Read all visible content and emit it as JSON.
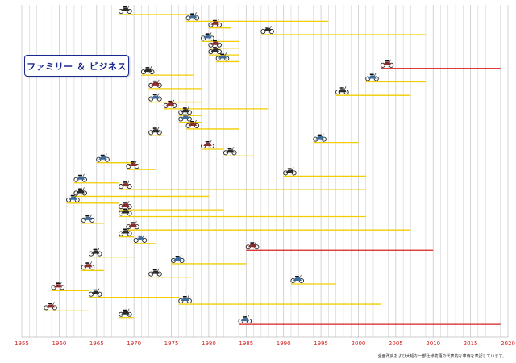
{
  "title": "ファミリー ＆ ビジネス",
  "footnote": "全面改良および大幅な一部仕様変更の代表的な車両を表記しています。",
  "colors": {
    "ongoing": "#f2cd00",
    "current": "#d72020",
    "grid": "#c9c9c9",
    "axis_text": "#d11f1f"
  },
  "chart_data": {
    "type": "timeline",
    "title": "ファミリー ＆ ビジネス",
    "xlabel": "",
    "ylabel": "",
    "xlim": [
      1955,
      2020
    ],
    "xticks": [
      1955,
      1960,
      1965,
      1970,
      1975,
      1980,
      1985,
      1990,
      1995,
      2000,
      2005,
      2010,
      2015,
      2020
    ],
    "grid": "vertical-yearly",
    "legend": "none",
    "rows": [
      {
        "start": 1968,
        "end": 1978,
        "status": "ended"
      },
      {
        "start": 1977,
        "end": 1996,
        "status": "ended"
      },
      {
        "start": 1980,
        "end": 1983,
        "status": "ended"
      },
      {
        "start": 1987,
        "end": 2009,
        "status": "ended"
      },
      {
        "start": 1979,
        "end": 1984,
        "status": "ended"
      },
      {
        "start": 1980,
        "end": 1984,
        "status": "ended"
      },
      {
        "start": 1980,
        "end": 1984,
        "status": "ended"
      },
      {
        "start": 1981,
        "end": 1984,
        "status": "ended"
      },
      {
        "start": 2003,
        "end": 2019,
        "status": "current"
      },
      {
        "start": 1971,
        "end": 1978,
        "status": "ended"
      },
      {
        "start": 2001,
        "end": 2009,
        "status": "ended"
      },
      {
        "start": 1972,
        "end": 1979,
        "status": "ended"
      },
      {
        "start": 1997,
        "end": 2007,
        "status": "ended"
      },
      {
        "start": 1972,
        "end": 1979,
        "status": "ended"
      },
      {
        "start": 1974,
        "end": 1988,
        "status": "ended"
      },
      {
        "start": 1976,
        "end": 1979,
        "status": "ended"
      },
      {
        "start": 1976,
        "end": 1979,
        "status": "ended"
      },
      {
        "start": 1977,
        "end": 1984,
        "status": "ended"
      },
      {
        "start": 1972,
        "end": 1974,
        "status": "ended"
      },
      {
        "start": 1994,
        "end": 2000,
        "status": "ended"
      },
      {
        "start": 1979,
        "end": 1982,
        "status": "ended"
      },
      {
        "start": 1982,
        "end": 1986,
        "status": "ended"
      },
      {
        "start": 1965,
        "end": 1970,
        "status": "ended"
      },
      {
        "start": 1969,
        "end": 1973,
        "status": "ended"
      },
      {
        "start": 1990,
        "end": 2001,
        "status": "ended"
      },
      {
        "start": 1962,
        "end": 1968,
        "status": "ended"
      },
      {
        "start": 1968,
        "end": 2001,
        "status": "ended"
      },
      {
        "start": 1962,
        "end": 1980,
        "status": "ended"
      },
      {
        "start": 1961,
        "end": 1968,
        "status": "ended"
      },
      {
        "start": 1968,
        "end": 1982,
        "status": "ended"
      },
      {
        "start": 1968,
        "end": 2001,
        "status": "ended"
      },
      {
        "start": 1963,
        "end": 1966,
        "status": "ended"
      },
      {
        "start": 1969,
        "end": 2007,
        "status": "ended"
      },
      {
        "start": 1968,
        "end": 1970,
        "status": "ended"
      },
      {
        "start": 1970,
        "end": 1973,
        "status": "ended"
      },
      {
        "start": 1985,
        "end": 2010,
        "status": "current"
      },
      {
        "start": 1964,
        "end": 1970,
        "status": "ended"
      },
      {
        "start": 1975,
        "end": 1985,
        "status": "ended"
      },
      {
        "start": 1963,
        "end": 1966,
        "status": "ended"
      },
      {
        "start": 1972,
        "end": 1978,
        "status": "ended"
      },
      {
        "start": 1991,
        "end": 1997,
        "status": "ended"
      },
      {
        "start": 1959,
        "end": 1964,
        "status": "ended"
      },
      {
        "start": 1964,
        "end": 1976,
        "status": "ended"
      },
      {
        "start": 1976,
        "end": 2003,
        "status": "ended"
      },
      {
        "start": 1958,
        "end": 1964,
        "status": "ended"
      },
      {
        "start": 1968,
        "end": 1970,
        "status": "ended"
      },
      {
        "start": 1984,
        "end": 2019,
        "status": "current"
      }
    ]
  }
}
